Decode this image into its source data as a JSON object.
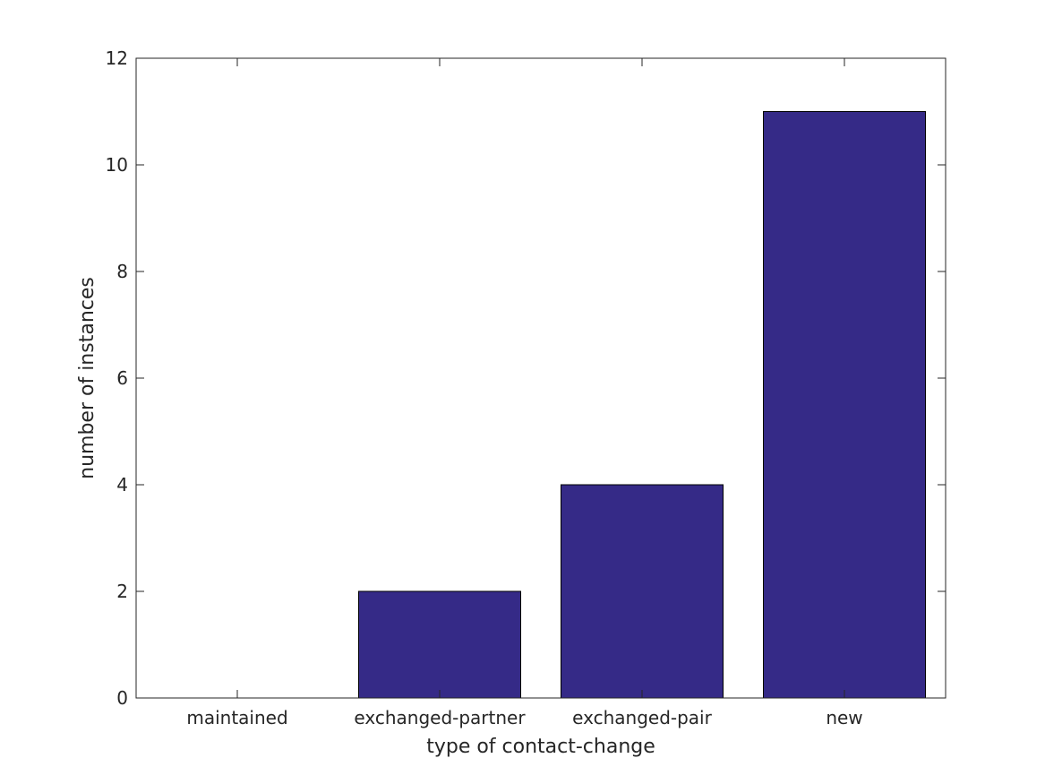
{
  "chart_data": {
    "type": "bar",
    "title": "",
    "xlabel": "type of contact-change",
    "ylabel": "number of instances",
    "categories": [
      "maintained",
      "exchanged-partner",
      "exchanged-pair",
      "new"
    ],
    "values": [
      0,
      2,
      4,
      11
    ],
    "ylim": [
      0,
      12
    ],
    "yticks": [
      0,
      2,
      4,
      6,
      8,
      10,
      12
    ],
    "bar_color": "#352a87",
    "bar_edge_color": "#000000",
    "axis_color": "#262626",
    "grid": false,
    "legend": "none"
  }
}
